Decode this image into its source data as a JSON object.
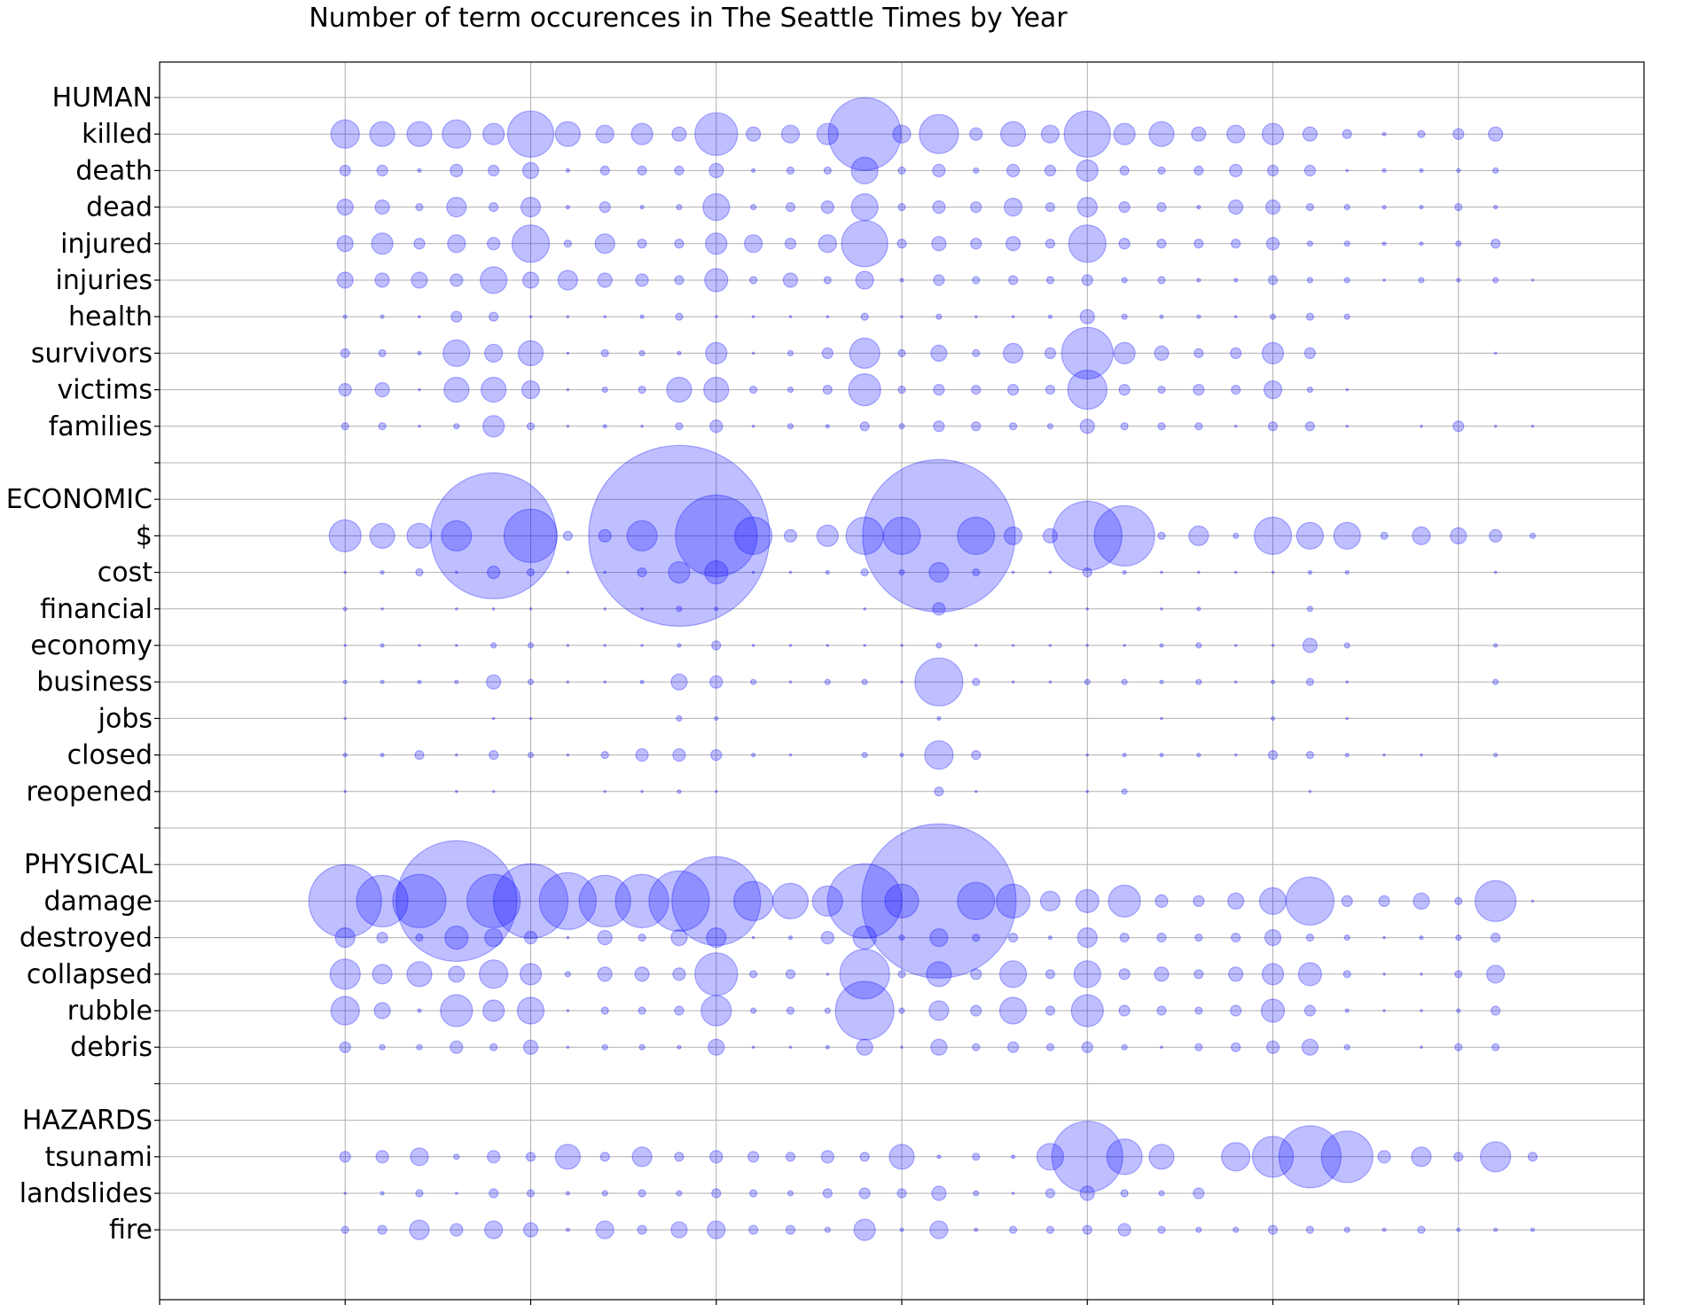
{
  "chart_data": {
    "type": "scatter",
    "title": "Number of term occurences in The Seattle Times by Year",
    "xlabel": "",
    "ylabel": "",
    "xlim": [
      1980,
      2020
    ],
    "xticks": [
      1980,
      1985,
      1990,
      1995,
      2000,
      2005,
      2010,
      2015,
      2020
    ],
    "grid": true,
    "marker_color": "#0000ff",
    "marker_alpha": 0.25,
    "size_encoding": "marker area proportional to term count (relative scale, no legend)",
    "row_labels": [
      "HUMAN",
      "killed",
      "death",
      "dead",
      "injured",
      "injuries",
      "health",
      "survivors",
      "victims",
      "families",
      "",
      "ECONOMIC",
      "$",
      "cost",
      "financial",
      "economy",
      "business",
      "jobs",
      "closed",
      "reopened",
      "",
      "PHYSICAL",
      "damage",
      "destroyed",
      "collapsed",
      "rubble",
      "debris",
      "",
      "HAZARDS",
      "tsunami",
      "landslides",
      "fire"
    ],
    "years": [
      1985,
      1986,
      1987,
      1988,
      1989,
      1990,
      1991,
      1992,
      1993,
      1994,
      1995,
      1996,
      1997,
      1998,
      1999,
      2000,
      2001,
      2002,
      2003,
      2004,
      2005,
      2006,
      2007,
      2008,
      2009,
      2010,
      2011,
      2012,
      2013,
      2014,
      2015,
      2016,
      2017
    ],
    "series": [
      {
        "name": "killed",
        "sizes": [
          32,
          28,
          28,
          32,
          24,
          52,
          28,
          20,
          24,
          16,
          48,
          16,
          20,
          24,
          82,
          20,
          44,
          14,
          28,
          20,
          52,
          24,
          28,
          16,
          20,
          24,
          16,
          10,
          4,
          8,
          12,
          16,
          0
        ]
      },
      {
        "name": "death",
        "sizes": [
          12,
          12,
          4,
          14,
          12,
          18,
          4,
          10,
          10,
          10,
          16,
          4,
          8,
          8,
          30,
          8,
          14,
          6,
          14,
          12,
          24,
          10,
          8,
          10,
          14,
          12,
          12,
          2,
          4,
          4,
          4,
          6,
          0
        ]
      },
      {
        "name": "dead",
        "sizes": [
          18,
          16,
          8,
          22,
          10,
          22,
          4,
          12,
          4,
          6,
          30,
          6,
          10,
          14,
          30,
          8,
          14,
          12,
          20,
          10,
          22,
          12,
          10,
          4,
          16,
          16,
          8,
          6,
          4,
          4,
          8,
          4,
          0
        ]
      },
      {
        "name": "injured",
        "sizes": [
          18,
          24,
          12,
          20,
          14,
          42,
          8,
          22,
          10,
          10,
          24,
          20,
          12,
          20,
          52,
          10,
          16,
          12,
          16,
          10,
          42,
          12,
          10,
          10,
          10,
          14,
          6,
          6,
          4,
          4,
          6,
          10,
          0
        ]
      },
      {
        "name": "injuries",
        "sizes": [
          18,
          16,
          18,
          14,
          30,
          18,
          22,
          16,
          14,
          10,
          26,
          8,
          16,
          8,
          20,
          4,
          12,
          8,
          10,
          8,
          12,
          6,
          8,
          4,
          4,
          10,
          6,
          6,
          2,
          6,
          4,
          6,
          2
        ]
      },
      {
        "name": "health",
        "sizes": [
          4,
          4,
          2,
          12,
          10,
          2,
          2,
          2,
          4,
          8,
          2,
          2,
          2,
          2,
          8,
          2,
          6,
          2,
          2,
          4,
          16,
          6,
          4,
          4,
          2,
          6,
          8,
          6,
          0,
          0,
          0,
          0,
          0
        ]
      },
      {
        "name": "survivors",
        "sizes": [
          10,
          8,
          4,
          30,
          20,
          28,
          2,
          8,
          6,
          4,
          24,
          2,
          6,
          12,
          34,
          8,
          18,
          8,
          22,
          12,
          58,
          24,
          16,
          10,
          12,
          24,
          12,
          0,
          0,
          0,
          0,
          2,
          0
        ]
      },
      {
        "name": "victims",
        "sizes": [
          14,
          16,
          2,
          28,
          28,
          20,
          2,
          6,
          8,
          28,
          28,
          8,
          6,
          10,
          36,
          8,
          12,
          10,
          12,
          10,
          44,
          12,
          8,
          12,
          10,
          20,
          6,
          2,
          0,
          0,
          0,
          0,
          0
        ]
      },
      {
        "name": "families",
        "sizes": [
          8,
          8,
          2,
          6,
          24,
          8,
          2,
          4,
          2,
          8,
          14,
          2,
          6,
          4,
          10,
          6,
          12,
          10,
          8,
          6,
          16,
          8,
          8,
          8,
          2,
          10,
          10,
          2,
          0,
          2,
          12,
          2,
          2
        ]
      },
      {
        "name": "",
        "sizes": []
      },
      {
        "name": "ECONOMIC",
        "sizes": []
      },
      {
        "name": "$",
        "sizes": [
          36,
          28,
          28,
          34,
          142,
          60,
          10,
          14,
          34,
          204,
          92,
          42,
          14,
          24,
          42,
          42,
          172,
          42,
          20,
          16,
          78,
          68,
          8,
          22,
          6,
          42,
          30,
          30,
          8,
          20,
          18,
          14,
          6
        ]
      },
      {
        "name": "cost",
        "sizes": [
          2,
          4,
          8,
          2,
          14,
          8,
          2,
          2,
          10,
          24,
          26,
          2,
          2,
          4,
          8,
          6,
          22,
          8,
          2,
          2,
          10,
          4,
          2,
          2,
          2,
          2,
          4,
          4,
          0,
          0,
          0,
          2,
          0
        ]
      },
      {
        "name": "financial",
        "sizes": [
          4,
          2,
          0,
          2,
          2,
          2,
          0,
          2,
          2,
          6,
          4,
          0,
          0,
          0,
          2,
          0,
          14,
          0,
          0,
          0,
          2,
          0,
          2,
          4,
          0,
          0,
          6,
          0,
          0,
          0,
          0,
          0,
          0
        ]
      },
      {
        "name": "economy",
        "sizes": [
          2,
          4,
          2,
          2,
          6,
          6,
          2,
          2,
          2,
          4,
          10,
          2,
          2,
          2,
          2,
          2,
          6,
          2,
          2,
          2,
          2,
          2,
          4,
          6,
          2,
          2,
          16,
          6,
          0,
          0,
          0,
          4,
          0
        ]
      },
      {
        "name": "business",
        "sizes": [
          4,
          4,
          4,
          4,
          16,
          6,
          2,
          2,
          4,
          18,
          14,
          6,
          2,
          6,
          6,
          2,
          54,
          8,
          2,
          2,
          6,
          6,
          4,
          6,
          2,
          4,
          8,
          2,
          0,
          0,
          0,
          6,
          0
        ]
      },
      {
        "name": "jobs",
        "sizes": [
          2,
          0,
          0,
          0,
          2,
          2,
          0,
          0,
          0,
          6,
          4,
          0,
          0,
          0,
          0,
          0,
          4,
          0,
          0,
          0,
          0,
          0,
          2,
          0,
          0,
          4,
          0,
          2,
          0,
          0,
          0,
          0,
          0
        ]
      },
      {
        "name": "closed",
        "sizes": [
          4,
          4,
          10,
          2,
          10,
          6,
          2,
          8,
          14,
          14,
          12,
          4,
          2,
          0,
          6,
          4,
          32,
          10,
          0,
          0,
          2,
          4,
          4,
          4,
          2,
          10,
          8,
          4,
          2,
          2,
          0,
          4,
          0
        ]
      },
      {
        "name": "reopened",
        "sizes": [
          2,
          0,
          0,
          2,
          2,
          0,
          0,
          2,
          2,
          4,
          2,
          0,
          0,
          0,
          0,
          0,
          10,
          2,
          0,
          0,
          2,
          6,
          0,
          0,
          0,
          0,
          2,
          0,
          0,
          0,
          0,
          0,
          0
        ]
      },
      {
        "name": "",
        "sizes": []
      },
      {
        "name": "PHYSICAL",
        "sizes": []
      },
      {
        "name": "damage",
        "sizes": [
          82,
          58,
          60,
          136,
          60,
          84,
          64,
          58,
          60,
          68,
          100,
          44,
          40,
          34,
          84,
          38,
          174,
          42,
          38,
          22,
          26,
          36,
          14,
          12,
          18,
          30,
          54,
          12,
          12,
          18,
          8,
          46,
          2
        ]
      },
      {
        "name": "destroyed",
        "sizes": [
          22,
          12,
          8,
          26,
          20,
          14,
          2,
          16,
          8,
          18,
          22,
          2,
          4,
          14,
          26,
          6,
          20,
          8,
          10,
          4,
          22,
          10,
          10,
          8,
          10,
          18,
          8,
          6,
          2,
          4,
          6,
          10,
          0
        ]
      },
      {
        "name": "collapsed",
        "sizes": [
          34,
          22,
          28,
          18,
          32,
          24,
          6,
          16,
          16,
          14,
          48,
          8,
          10,
          2,
          56,
          8,
          28,
          12,
          30,
          10,
          30,
          12,
          16,
          10,
          16,
          24,
          26,
          8,
          2,
          2,
          8,
          20,
          0
        ]
      },
      {
        "name": "rubble",
        "sizes": [
          32,
          18,
          4,
          36,
          24,
          30,
          2,
          8,
          8,
          10,
          34,
          6,
          8,
          6,
          66,
          6,
          22,
          12,
          30,
          10,
          36,
          12,
          10,
          8,
          12,
          26,
          12,
          4,
          2,
          2,
          4,
          10,
          0
        ]
      },
      {
        "name": "debris",
        "sizes": [
          12,
          6,
          6,
          14,
          8,
          16,
          2,
          6,
          6,
          4,
          18,
          2,
          2,
          4,
          18,
          2,
          18,
          8,
          12,
          8,
          12,
          6,
          2,
          8,
          10,
          14,
          18,
          6,
          0,
          2,
          8,
          8,
          0
        ]
      },
      {
        "name": "",
        "sizes": []
      },
      {
        "name": "HAZARDS",
        "sizes": []
      },
      {
        "name": "tsunami",
        "sizes": [
          12,
          14,
          20,
          6,
          14,
          10,
          28,
          10,
          22,
          10,
          14,
          12,
          10,
          14,
          10,
          28,
          4,
          8,
          4,
          30,
          80,
          40,
          28,
          0,
          32,
          46,
          70,
          58,
          14,
          22,
          10,
          34,
          10
        ]
      },
      {
        "name": "landslides",
        "sizes": [
          2,
          4,
          8,
          2,
          10,
          8,
          4,
          6,
          8,
          6,
          10,
          8,
          6,
          10,
          12,
          10,
          16,
          6,
          2,
          10,
          16,
          8,
          6,
          12,
          0,
          0,
          0,
          0,
          0,
          0,
          0,
          0,
          0
        ]
      },
      {
        "name": "fire",
        "sizes": [
          8,
          10,
          22,
          14,
          20,
          16,
          4,
          20,
          10,
          18,
          20,
          10,
          10,
          6,
          24,
          4,
          20,
          4,
          8,
          8,
          10,
          14,
          8,
          6,
          6,
          10,
          8,
          6,
          4,
          8,
          4,
          4,
          4
        ]
      }
    ]
  }
}
